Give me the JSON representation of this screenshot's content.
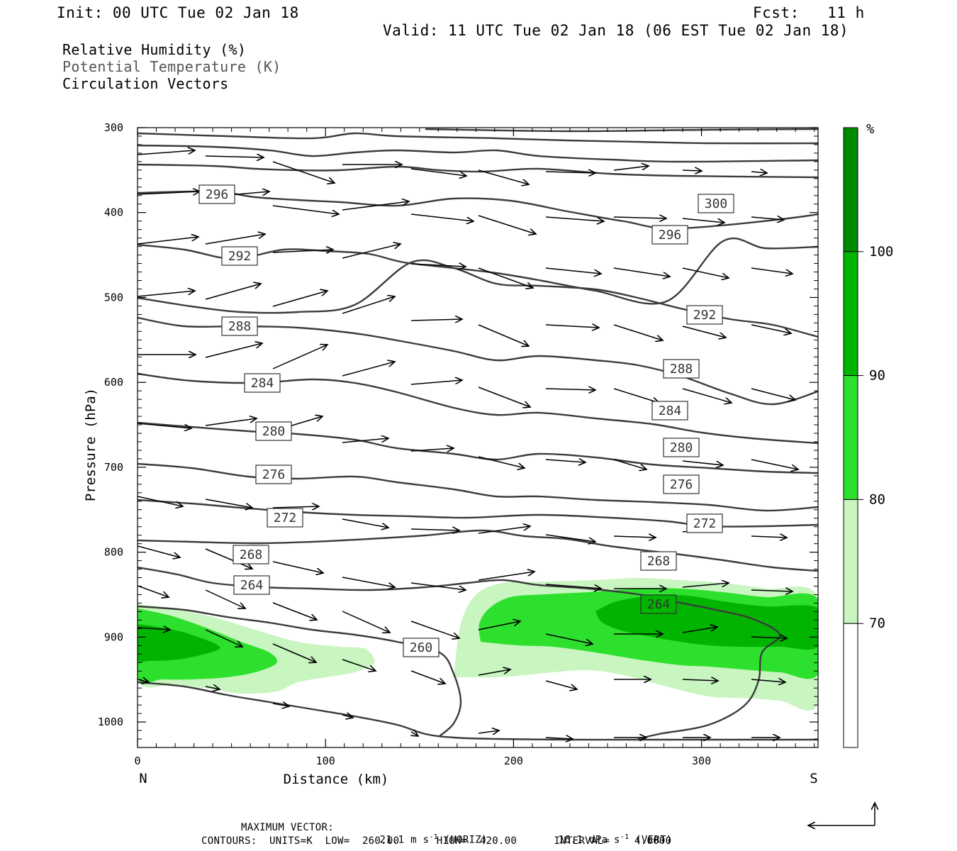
{
  "header": {
    "init": "Init: 00 UTC Tue 02 Jan 18",
    "fcst": "Fcst:   11 h",
    "valid": "Valid: 11 UTC Tue 02 Jan 18 (06 EST Tue 02 Jan 18)"
  },
  "legend": {
    "rh": "Relative Humidity (%)",
    "theta": "Potential Temperature (K)",
    "vectors": "Circulation Vectors"
  },
  "footer": {
    "max_vector_label": "MAXIMUM VECTOR:",
    "horiz_value": "21.1 m s",
    "horiz_tail": "(HORIZ)",
    "vert_value": "16.1 dPa s",
    "vert_tail": "(VERT)",
    "exponent": "-1",
    "contours_line": "CONTOURS:  UNITS=K  LOW=  260.00      HIGH=  420.00      INTERVAL=    4.0000"
  },
  "colors": {
    "rh_70": "#c8f5c0",
    "rh_80": "#2ee02e",
    "rh_90": "#00b400",
    "rh_100": "#008a00",
    "theta_line": "#3c3c3c",
    "vector": "#000000"
  },
  "chart_data": {
    "type": "cross-section",
    "xlabel": "Distance (km)",
    "ylabel": "Pressure (hPa)",
    "x_ticks": [
      0,
      100,
      200,
      300
    ],
    "y_ticks": [
      300,
      400,
      500,
      600,
      700,
      800,
      900,
      1000
    ],
    "xlim": [
      0,
      362
    ],
    "ylim": [
      1030,
      300
    ],
    "left_end_label": "N",
    "right_end_label": "S",
    "colorbar": {
      "unit": "%",
      "levels": [
        70,
        80,
        90,
        100
      ],
      "colors": [
        "#ffffff",
        "#c8f5c0",
        "#2ee02e",
        "#00b400",
        "#008a00"
      ]
    },
    "rh_regions": [
      {
        "level": 70,
        "points": [
          [
            0,
            870
          ],
          [
            40,
            890
          ],
          [
            80,
            910
          ],
          [
            110,
            922
          ],
          [
            122,
            922
          ],
          [
            127,
            945
          ],
          [
            110,
            958
          ],
          [
            80,
            965
          ],
          [
            70,
            975
          ],
          [
            50,
            975
          ],
          [
            20,
            965
          ],
          [
            0,
            960
          ],
          [
            0,
            870
          ],
          [
            160,
            955
          ],
          [
            170,
            880
          ],
          [
            185,
            858
          ],
          [
            210,
            845
          ],
          [
            250,
            838
          ],
          [
            300,
            838
          ],
          [
            362,
            845
          ],
          [
            362,
            990
          ],
          [
            330,
            990
          ],
          [
            300,
            985
          ],
          [
            270,
            970
          ],
          [
            240,
            955
          ],
          [
            200,
            960
          ],
          [
            170,
            960
          ]
        ]
      },
      {
        "level": 80,
        "points": [
          [
            0,
            875
          ],
          [
            40,
            895
          ],
          [
            70,
            920
          ],
          [
            75,
            935
          ],
          [
            60,
            948
          ],
          [
            30,
            950
          ],
          [
            0,
            945
          ],
          [
            0,
            875
          ],
          [
            182,
            900
          ],
          [
            185,
            880
          ],
          [
            200,
            865
          ],
          [
            230,
            858
          ],
          [
            260,
            848
          ],
          [
            300,
            846
          ],
          [
            362,
            852
          ],
          [
            362,
            955
          ],
          [
            320,
            950
          ],
          [
            290,
            945
          ],
          [
            260,
            938
          ],
          [
            230,
            925
          ],
          [
            200,
            918
          ],
          [
            185,
            912
          ]
        ]
      },
      {
        "level": 90,
        "points": [
          [
            0,
            885
          ],
          [
            25,
            900
          ],
          [
            40,
            918
          ],
          [
            25,
            935
          ],
          [
            0,
            940
          ],
          [
            0,
            885
          ],
          [
            245,
            865
          ],
          [
            270,
            858
          ],
          [
            300,
            855
          ],
          [
            340,
            862
          ],
          [
            362,
            868
          ],
          [
            362,
            915
          ],
          [
            330,
            915
          ],
          [
            300,
            912
          ],
          [
            270,
            900
          ],
          [
            250,
            885
          ]
        ]
      }
    ],
    "theta_contours": [
      {
        "value": 260,
        "label_at": [
          150,
          918
        ]
      },
      {
        "value": 264,
        "label_at": [
          60,
          825
        ],
        "label_at2": [
          277,
          852
        ]
      },
      {
        "value": 268,
        "label_at": [
          60,
          794
        ],
        "label_at2": [
          277,
          790
        ]
      },
      {
        "value": 272,
        "label_at": [
          78,
          750
        ],
        "label_at2": [
          300,
          738
        ]
      },
      {
        "value": 276,
        "label_at": [
          73,
          710
        ],
        "label_at2": [
          288,
          683
        ]
      },
      {
        "value": 280,
        "label_at": [
          73,
          660
        ],
        "label_at2": [
          288,
          636
        ]
      },
      {
        "value": 284,
        "label_at": [
          66,
          605
        ],
        "label_at2": [
          283,
          585
        ]
      },
      {
        "value": 288,
        "label_at": [
          54,
          537
        ],
        "label_at2": [
          288,
          528
        ]
      },
      {
        "value": 292,
        "label_at": [
          54,
          462
        ],
        "label_at2": [
          300,
          465
        ]
      },
      {
        "value": 296,
        "label_at": [
          42,
          382
        ],
        "label_at2": [
          283,
          428
        ]
      },
      {
        "value": 300,
        "label_at2": [
          307,
          396
        ]
      }
    ]
  }
}
